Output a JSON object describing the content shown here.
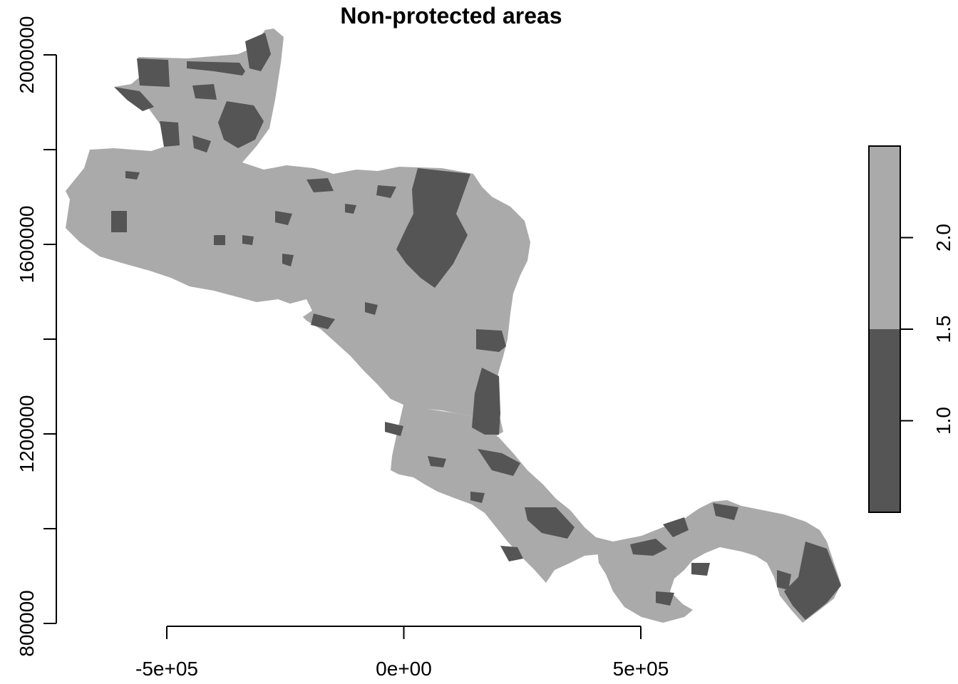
{
  "title": "Non-protected areas",
  "x_axis": {
    "ticks": [
      {
        "value": -500000,
        "label": "-5e+05"
      },
      {
        "value": 0,
        "label": "0e+00"
      },
      {
        "value": 500000,
        "label": "5e+05"
      }
    ]
  },
  "y_axis": {
    "ticks": [
      {
        "value": 800000,
        "label": "800000"
      },
      {
        "value": 1000000,
        "label": ""
      },
      {
        "value": 1200000,
        "label": "1200000"
      },
      {
        "value": 1400000,
        "label": ""
      },
      {
        "value": 1600000,
        "label": "1600000"
      },
      {
        "value": 1800000,
        "label": ""
      },
      {
        "value": 2000000,
        "label": "2000000"
      }
    ]
  },
  "legend": {
    "range": [
      0.5,
      2.5
    ],
    "ticks": [
      {
        "value": 1.0,
        "label": "1.0"
      },
      {
        "value": 1.5,
        "label": "1.5"
      },
      {
        "value": 2.0,
        "label": "2.0"
      }
    ],
    "classes": [
      {
        "from": 0.5,
        "to": 1.5,
        "color": "#555555"
      },
      {
        "from": 1.5,
        "to": 2.5,
        "color": "#aaaaaa"
      }
    ]
  },
  "colors": {
    "protected": "#555555",
    "non_protected": "#aaaaaa",
    "background": "#ffffff"
  }
}
